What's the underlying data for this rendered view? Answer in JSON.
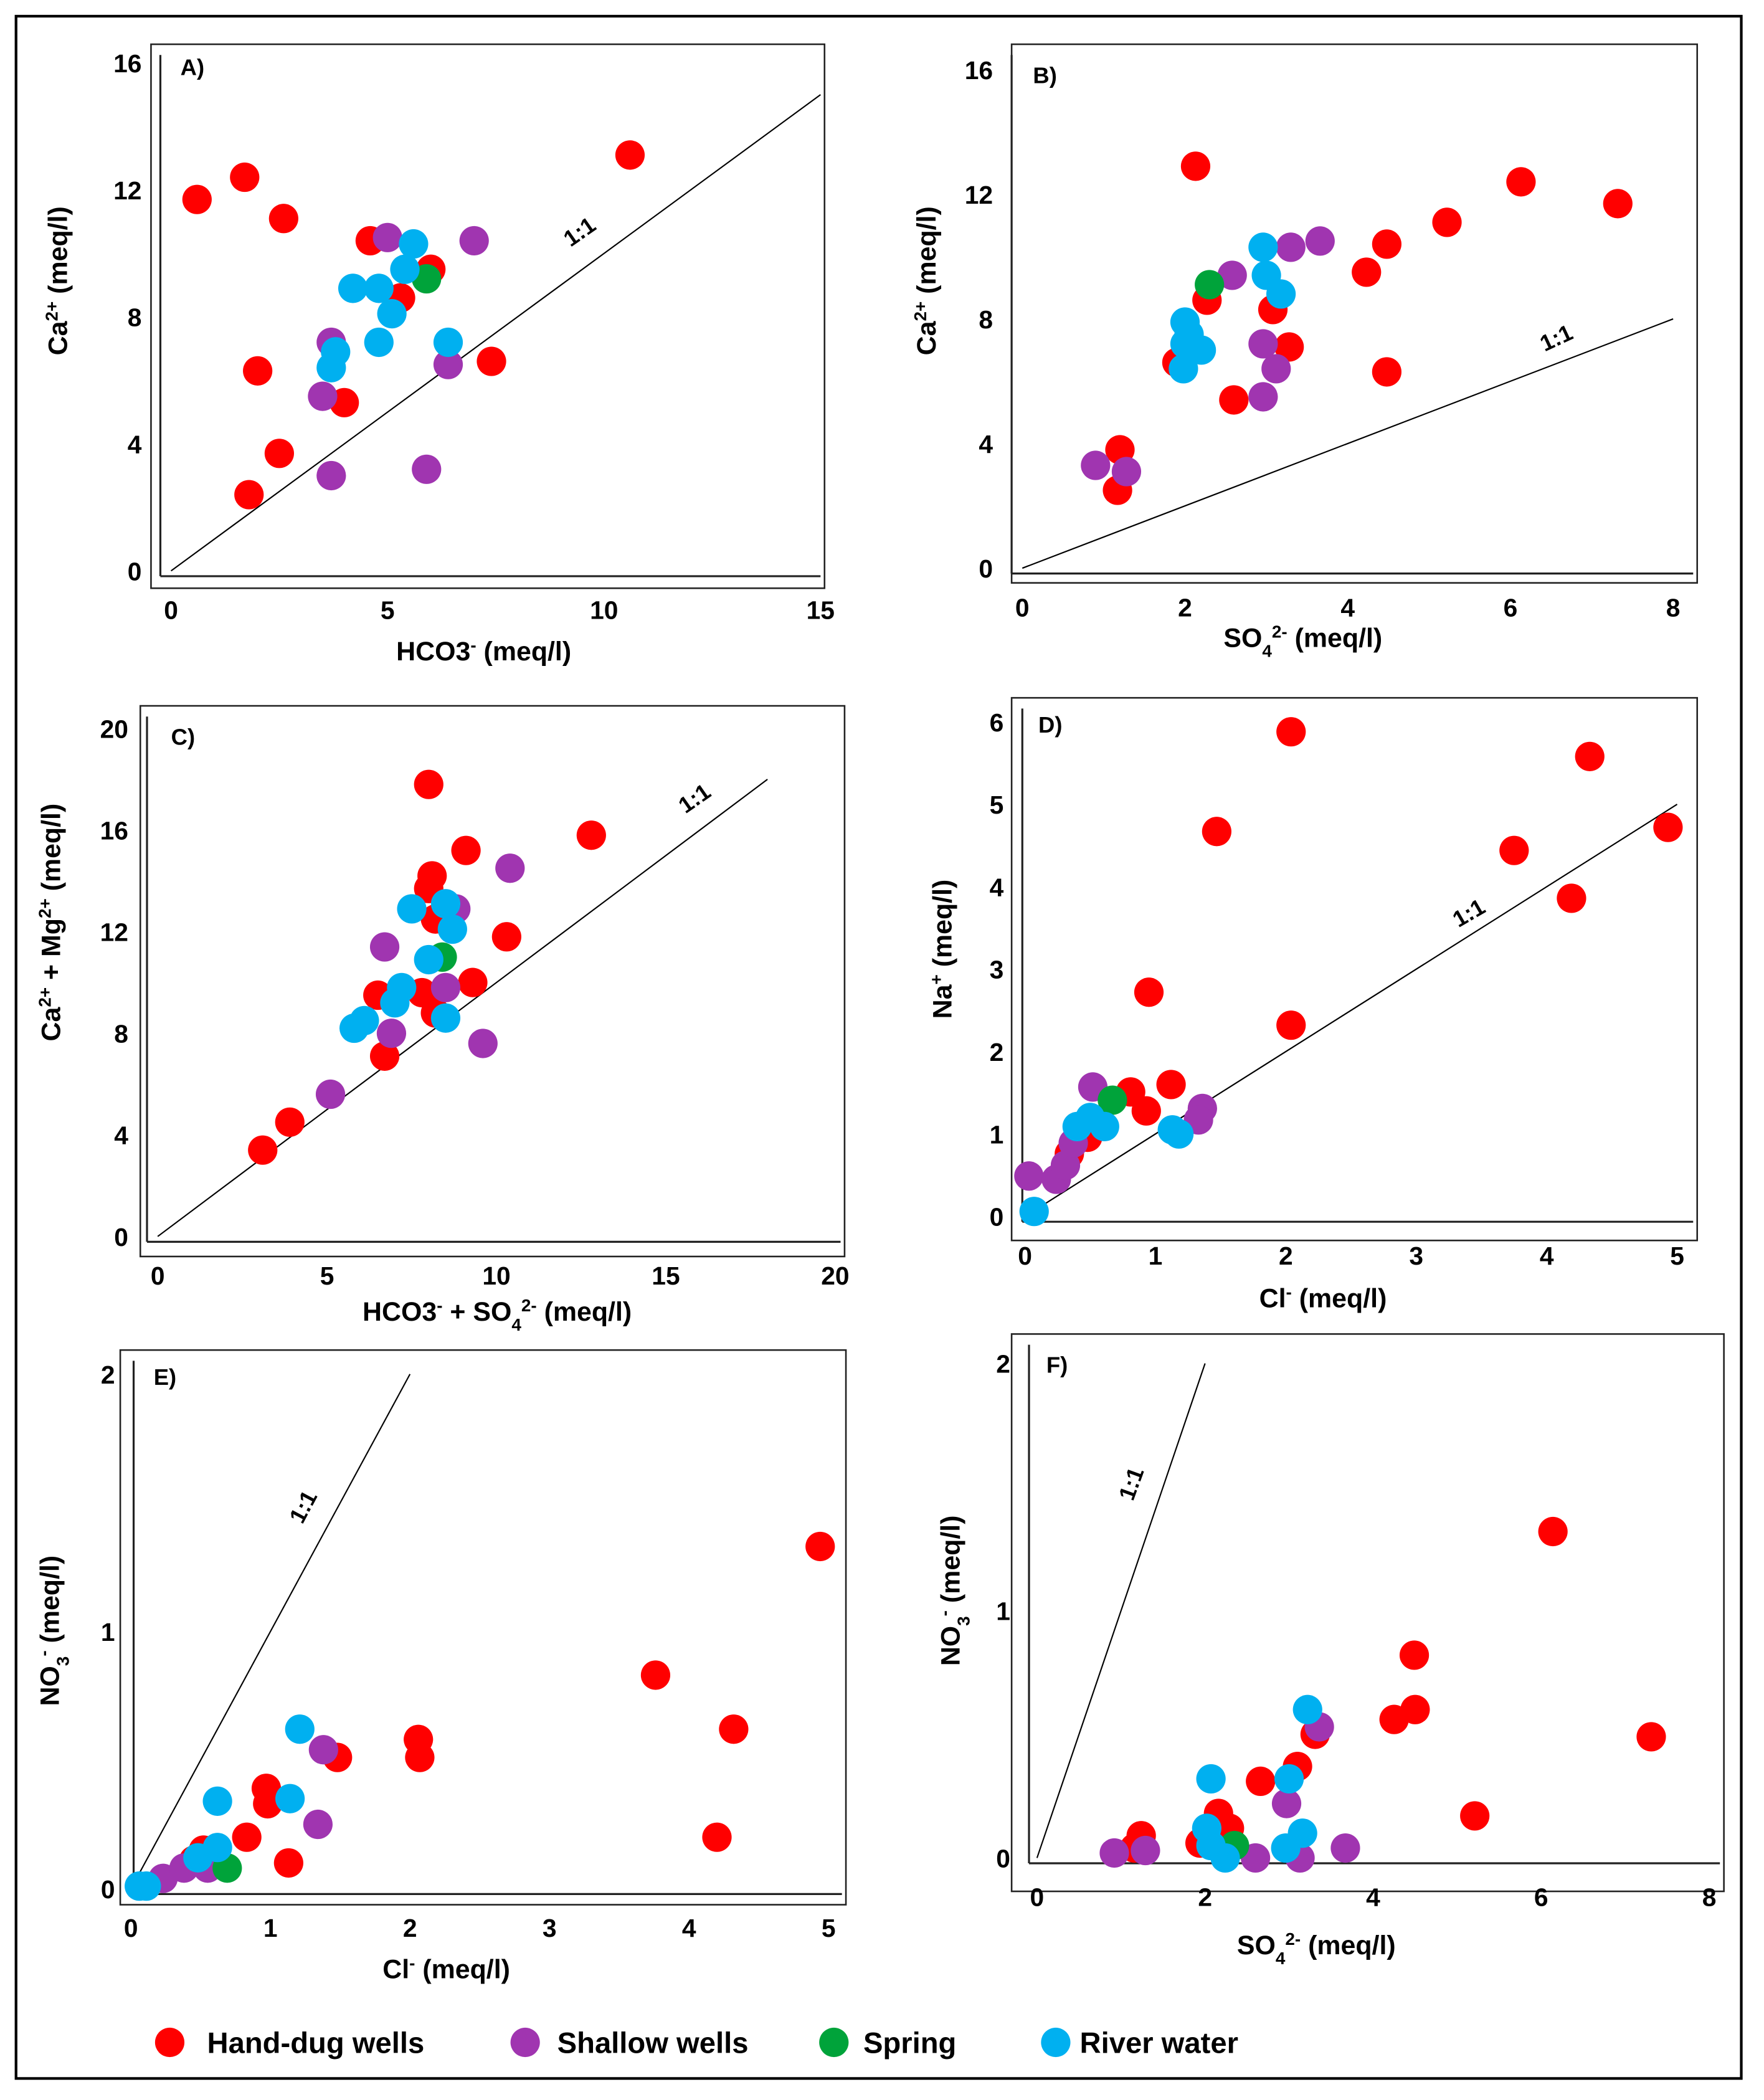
{
  "legend": [
    {
      "name": "Hand-dug wells",
      "color": "#ff0000"
    },
    {
      "name": "Shallow wells",
      "color": "#a035b0"
    },
    {
      "name": "Spring",
      "color": "#00a33a"
    },
    {
      "name": "River water",
      "color": "#00b0f0"
    }
  ],
  "chart_data": [
    {
      "type": "scatter",
      "panel": "A)",
      "ref_line_label": "1:1",
      "ref_line": [
        [
          0,
          0
        ],
        [
          15,
          15
        ]
      ],
      "xlim": [
        0,
        15
      ],
      "ylim": [
        0,
        16
      ],
      "xticks": [
        "0",
        "5",
        "10",
        "15"
      ],
      "yticks": [
        "0",
        "4",
        "8",
        "12",
        "16"
      ],
      "xlabel": [
        {
          "t": "HCO3"
        },
        {
          "t": "-",
          "s": "sup"
        },
        {
          "t": " (meq/l)"
        }
      ],
      "ylabel": [
        {
          "t": "Ca"
        },
        {
          "t": "2+",
          "s": "sup"
        },
        {
          "t": " (meq/l)"
        }
      ],
      "series": [
        {
          "name": "Hand-dug wells",
          "points": [
            [
              0.6,
              11.7
            ],
            [
              1.7,
              12.4
            ],
            [
              2.6,
              11.1
            ],
            [
              2.0,
              6.3
            ],
            [
              2.5,
              3.7
            ],
            [
              1.8,
              2.4
            ],
            [
              4.0,
              5.3
            ],
            [
              4.6,
              10.4
            ],
            [
              6.0,
              9.5
            ],
            [
              5.3,
              8.6
            ],
            [
              7.4,
              6.6
            ],
            [
              10.6,
              13.1
            ]
          ]
        },
        {
          "name": "Shallow wells",
          "points": [
            [
              5.0,
              10.5
            ],
            [
              7.0,
              10.4
            ],
            [
              3.7,
              7.2
            ],
            [
              3.5,
              5.5
            ],
            [
              6.4,
              6.5
            ],
            [
              3.7,
              3.0
            ],
            [
              5.9,
              3.2
            ]
          ]
        },
        {
          "name": "Spring",
          "points": [
            [
              5.9,
              9.2
            ]
          ]
        },
        {
          "name": "River water",
          "points": [
            [
              5.6,
              10.3
            ],
            [
              4.2,
              8.9
            ],
            [
              4.8,
              8.9
            ],
            [
              5.4,
              9.5
            ],
            [
              5.1,
              8.1
            ],
            [
              4.8,
              7.2
            ],
            [
              3.8,
              6.9
            ],
            [
              3.7,
              6.4
            ],
            [
              6.4,
              7.2
            ]
          ]
        }
      ]
    },
    {
      "type": "scatter",
      "panel": "B)",
      "ref_line_label": "1:1",
      "ref_line": [
        [
          0,
          0
        ],
        [
          8,
          8
        ]
      ],
      "xlim": [
        0,
        8
      ],
      "ylim": [
        0,
        16
      ],
      "xticks": [
        "0",
        "2",
        "4",
        "6",
        "8"
      ],
      "yticks": [
        "0",
        "4",
        "8",
        "12",
        "16"
      ],
      "xlabel": [
        {
          "t": "SO"
        },
        {
          "t": "4",
          "s": "sub"
        },
        {
          "t": "2-",
          "s": "sup"
        },
        {
          "t": " (meq/l)"
        }
      ],
      "ylabel": [
        {
          "t": "Ca"
        },
        {
          "t": "2+",
          "s": "sup"
        },
        {
          "t": " (meq/l)"
        }
      ],
      "series": [
        {
          "name": "Hand-dug wells",
          "points": [
            [
              2.13,
              12.9
            ],
            [
              1.2,
              3.8
            ],
            [
              1.17,
              2.5
            ],
            [
              2.27,
              8.6
            ],
            [
              1.9,
              6.6
            ],
            [
              2.6,
              5.4
            ],
            [
              3.08,
              8.3
            ],
            [
              3.28,
              7.1
            ],
            [
              4.48,
              10.4
            ],
            [
              4.23,
              9.5
            ],
            [
              4.48,
              6.3
            ],
            [
              5.22,
              11.1
            ],
            [
              6.13,
              12.4
            ],
            [
              7.32,
              11.7
            ]
          ]
        },
        {
          "name": "Shallow wells",
          "points": [
            [
              2.58,
              9.4
            ],
            [
              3.3,
              10.3
            ],
            [
              3.66,
              10.5
            ],
            [
              2.96,
              7.2
            ],
            [
              3.12,
              6.4
            ],
            [
              2.96,
              5.5
            ],
            [
              0.9,
              3.3
            ],
            [
              1.28,
              3.1
            ]
          ]
        },
        {
          "name": "Spring",
          "points": [
            [
              2.3,
              9.1
            ]
          ]
        },
        {
          "name": "River water",
          "points": [
            [
              2.96,
              10.3
            ],
            [
              3.0,
              9.4
            ],
            [
              3.18,
              8.8
            ],
            [
              2.0,
              7.9
            ],
            [
              2.0,
              7.2
            ],
            [
              2.2,
              7.0
            ],
            [
              1.98,
              6.4
            ],
            [
              2.05,
              7.5
            ]
          ]
        }
      ]
    },
    {
      "type": "scatter",
      "panel": "C)",
      "ref_line_label": "1:1",
      "ref_line": [
        [
          0,
          0
        ],
        [
          18,
          18
        ]
      ],
      "xlim": [
        0,
        20
      ],
      "ylim": [
        0,
        20
      ],
      "xticks": [
        "0",
        "5",
        "10",
        "15",
        "20"
      ],
      "yticks": [
        "0",
        "4",
        "8",
        "12",
        "16",
        "20"
      ],
      "xlabel": [
        {
          "t": "HCO3"
        },
        {
          "t": "-",
          "s": "sup"
        },
        {
          "t": " + SO"
        },
        {
          "t": "4",
          "s": "sub"
        },
        {
          "t": "2-",
          "s": "sup"
        },
        {
          "t": " (meq/l)"
        }
      ],
      "ylabel": [
        {
          "t": "Ca"
        },
        {
          "t": "2+",
          "s": "sup"
        },
        {
          "t": " + Mg"
        },
        {
          "t": "2+",
          "s": "sup"
        },
        {
          "t": " (meq/l)"
        }
      ],
      "series": [
        {
          "name": "Hand-dug wells",
          "points": [
            [
              3.1,
              3.4
            ],
            [
              3.9,
              4.5
            ],
            [
              8.0,
              17.8
            ],
            [
              9.1,
              15.2
            ],
            [
              12.8,
              15.8
            ],
            [
              8.1,
              14.2
            ],
            [
              8.0,
              13.7
            ],
            [
              8.2,
              12.5
            ],
            [
              10.3,
              11.8
            ],
            [
              6.5,
              9.5
            ],
            [
              7.8,
              9.6
            ],
            [
              9.3,
              10.0
            ],
            [
              8.2,
              8.8
            ],
            [
              6.7,
              7.1
            ]
          ]
        },
        {
          "name": "Shallow wells",
          "points": [
            [
              10.4,
              14.5
            ],
            [
              8.8,
              12.9
            ],
            [
              6.7,
              11.4
            ],
            [
              8.5,
              9.8
            ],
            [
              6.9,
              8.0
            ],
            [
              9.6,
              7.6
            ],
            [
              5.1,
              5.6
            ]
          ]
        },
        {
          "name": "Spring",
          "points": [
            [
              8.4,
              11.0
            ]
          ]
        },
        {
          "name": "River water",
          "points": [
            [
              7.5,
              12.9
            ],
            [
              8.5,
              13.1
            ],
            [
              8.7,
              12.1
            ],
            [
              8.0,
              10.9
            ],
            [
              7.2,
              9.8
            ],
            [
              7.0,
              9.2
            ],
            [
              6.1,
              8.5
            ],
            [
              5.8,
              8.2
            ],
            [
              8.5,
              8.6
            ]
          ]
        }
      ]
    },
    {
      "type": "scatter",
      "panel": "D)",
      "ref_line_label": "1:1",
      "ref_line": [
        [
          0,
          0
        ],
        [
          5,
          5
        ]
      ],
      "xlim": [
        0,
        5
      ],
      "ylim": [
        0,
        6
      ],
      "xticks": [
        "0",
        "1",
        "2",
        "3",
        "4",
        "5"
      ],
      "yticks": [
        "0",
        "1",
        "2",
        "3",
        "4",
        "5",
        "6"
      ],
      "xlabel": [
        {
          "t": "Cl"
        },
        {
          "t": "-",
          "s": "sup"
        },
        {
          "t": " (meq/l)"
        }
      ],
      "ylabel": [
        {
          "t": "Na"
        },
        {
          "t": "+",
          "s": "sup"
        },
        {
          "t": " (meq/l)"
        }
      ],
      "series": [
        {
          "name": "Hand-dug wells",
          "points": [
            [
              2.04,
              5.88
            ],
            [
              4.33,
              5.58
            ],
            [
              1.47,
              4.67
            ],
            [
              4.93,
              4.72
            ],
            [
              3.75,
              4.44
            ],
            [
              4.19,
              3.86
            ],
            [
              0.95,
              2.72
            ],
            [
              2.04,
              2.32
            ],
            [
              1.12,
              1.6
            ],
            [
              0.81,
              1.51
            ],
            [
              0.93,
              1.28
            ],
            [
              0.48,
              0.96
            ],
            [
              0.34,
              0.76
            ]
          ]
        },
        {
          "name": "Shallow wells",
          "points": [
            [
              0.52,
              1.57
            ],
            [
              1.36,
              1.31
            ],
            [
              1.33,
              1.17
            ],
            [
              0.03,
              0.49
            ],
            [
              0.24,
              0.45
            ],
            [
              0.31,
              0.62
            ],
            [
              0.37,
              0.89
            ]
          ]
        },
        {
          "name": "Spring",
          "points": [
            [
              0.67,
              1.41
            ]
          ]
        },
        {
          "name": "River water",
          "points": [
            [
              0.4,
              1.09
            ],
            [
              0.5,
              1.2
            ],
            [
              0.61,
              1.09
            ],
            [
              1.13,
              1.05
            ],
            [
              1.18,
              1.0
            ],
            [
              0.07,
              0.06
            ]
          ]
        }
      ]
    },
    {
      "type": "scatter",
      "panel": "E)",
      "ref_line_label": "1:1",
      "ref_line": [
        [
          0,
          0
        ],
        [
          2,
          2
        ]
      ],
      "xlim": [
        0,
        5
      ],
      "ylim": [
        0,
        2
      ],
      "xticks": [
        "0",
        "1",
        "2",
        "3",
        "4",
        "5"
      ],
      "yticks": [
        "0",
        "1",
        "2"
      ],
      "xlabel": [
        {
          "t": "Cl"
        },
        {
          "t": "-",
          "s": "sup"
        },
        {
          "t": " (meq/l)"
        }
      ],
      "ylabel": [
        {
          "t": "NO"
        },
        {
          "t": "3",
          "s": "sub"
        },
        {
          "t": "-",
          "s": "sup"
        },
        {
          "t": " (meq/l)"
        }
      ],
      "series": [
        {
          "name": "Hand-dug wells",
          "points": [
            [
              4.94,
              1.33
            ],
            [
              3.76,
              0.83
            ],
            [
              4.32,
              0.62
            ],
            [
              4.2,
              0.2
            ],
            [
              2.06,
              0.58
            ],
            [
              2.07,
              0.51
            ],
            [
              1.48,
              0.51
            ],
            [
              0.97,
              0.39
            ],
            [
              0.98,
              0.33
            ],
            [
              0.83,
              0.2
            ],
            [
              1.13,
              0.1
            ],
            [
              0.52,
              0.15
            ],
            [
              0.45,
              0.11
            ]
          ]
        },
        {
          "name": "Shallow wells",
          "points": [
            [
              1.38,
              0.54
            ],
            [
              1.34,
              0.25
            ],
            [
              0.23,
              0.04
            ],
            [
              0.38,
              0.08
            ],
            [
              0.55,
              0.08
            ]
          ]
        },
        {
          "name": "Spring",
          "points": [
            [
              0.69,
              0.08
            ]
          ]
        },
        {
          "name": "River water",
          "points": [
            [
              1.21,
              0.62
            ],
            [
              0.62,
              0.34
            ],
            [
              1.14,
              0.35
            ],
            [
              0.62,
              0.16
            ],
            [
              0.48,
              0.12
            ],
            [
              0.06,
              0.01
            ],
            [
              0.11,
              0.01
            ]
          ]
        }
      ]
    },
    {
      "type": "scatter",
      "panel": "F)",
      "ref_line_label": "1:1",
      "ref_line": [
        [
          0,
          0
        ],
        [
          2,
          2
        ]
      ],
      "xlim": [
        0,
        8
      ],
      "ylim": [
        0,
        2
      ],
      "xticks": [
        "0",
        "2",
        "4",
        "6",
        "8"
      ],
      "yticks": [
        "0",
        "1",
        "2"
      ],
      "xlabel": [
        {
          "t": "SO"
        },
        {
          "t": "4",
          "s": "sub"
        },
        {
          "t": "2-",
          "s": "sup"
        },
        {
          "t": " (meq/l)"
        }
      ],
      "ylabel": [
        {
          "t": "NO"
        },
        {
          "t": "3",
          "s": "sub"
        },
        {
          "t": "-",
          "s": "sup"
        },
        {
          "t": " (meq/l)"
        }
      ],
      "series": [
        {
          "name": "Hand-dug wells",
          "points": [
            [
              6.14,
              1.32
            ],
            [
              4.49,
              0.82
            ],
            [
              4.5,
              0.6
            ],
            [
              4.25,
              0.56
            ],
            [
              7.31,
              0.49
            ],
            [
              5.21,
              0.17
            ],
            [
              3.31,
              0.5
            ],
            [
              3.1,
              0.37
            ],
            [
              2.66,
              0.31
            ],
            [
              2.16,
              0.18
            ],
            [
              2.29,
              0.12
            ],
            [
              1.94,
              0.06
            ],
            [
              1.24,
              0.09
            ],
            [
              1.16,
              0.04
            ]
          ]
        },
        {
          "name": "Shallow wells",
          "points": [
            [
              3.36,
              0.53
            ],
            [
              2.97,
              0.22
            ],
            [
              0.92,
              0.02
            ],
            [
              1.29,
              0.03
            ],
            [
              2.6,
              0.0
            ],
            [
              3.13,
              0.0
            ],
            [
              3.67,
              0.04
            ]
          ]
        },
        {
          "name": "Spring",
          "points": [
            [
              2.35,
              0.05
            ]
          ]
        },
        {
          "name": "River water",
          "points": [
            [
              3.22,
              0.6
            ],
            [
              3.0,
              0.32
            ],
            [
              2.07,
              0.32
            ],
            [
              2.02,
              0.12
            ],
            [
              2.07,
              0.05
            ],
            [
              2.24,
              0.0
            ],
            [
              2.96,
              0.04
            ],
            [
              3.16,
              0.1
            ]
          ]
        }
      ]
    }
  ]
}
